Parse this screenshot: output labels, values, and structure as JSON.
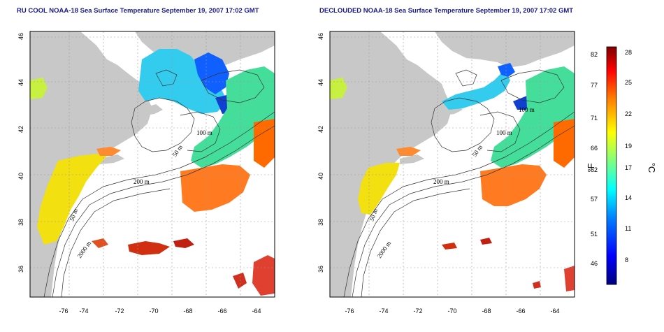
{
  "panels": [
    {
      "title": "RU COOL NOAA-18 Sea Surface Temperature September 19, 2007 17:02 GMT",
      "contour_labels": [
        "100 m",
        "50 m",
        "200 m",
        "50 m",
        "2000 m"
      ]
    },
    {
      "title": "DECLOUDED NOAA-18 Sea Surface Temperature September 19, 2007 17:02 GMT",
      "contour_labels": [
        "100 m",
        "100 m",
        "50 m",
        "200 m",
        "50 m",
        "2000 m"
      ]
    }
  ],
  "axes": {
    "x_ticks": [
      "-76",
      "-74",
      "-72",
      "-70",
      "-68",
      "-66",
      "-64"
    ],
    "y_ticks": [
      "46",
      "44",
      "42",
      "40",
      "38",
      "36"
    ]
  },
  "colorbar": {
    "fahrenheit_ticks": [
      "82",
      "77",
      "71",
      "66",
      "62",
      "57",
      "51",
      "46"
    ],
    "celsius_ticks": [
      "28",
      "25",
      "22",
      "19",
      "17",
      "14",
      "11",
      "8"
    ],
    "fahrenheit_unit": "°F",
    "celsius_unit": "°C",
    "colors": [
      "#00007f",
      "#0000ff",
      "#0080ff",
      "#00ffff",
      "#80ff80",
      "#ffff00",
      "#ff8000",
      "#ff0000",
      "#7f0000"
    ]
  },
  "colors": {
    "land": "#c8c8c8",
    "title": "#1a1a8c"
  }
}
